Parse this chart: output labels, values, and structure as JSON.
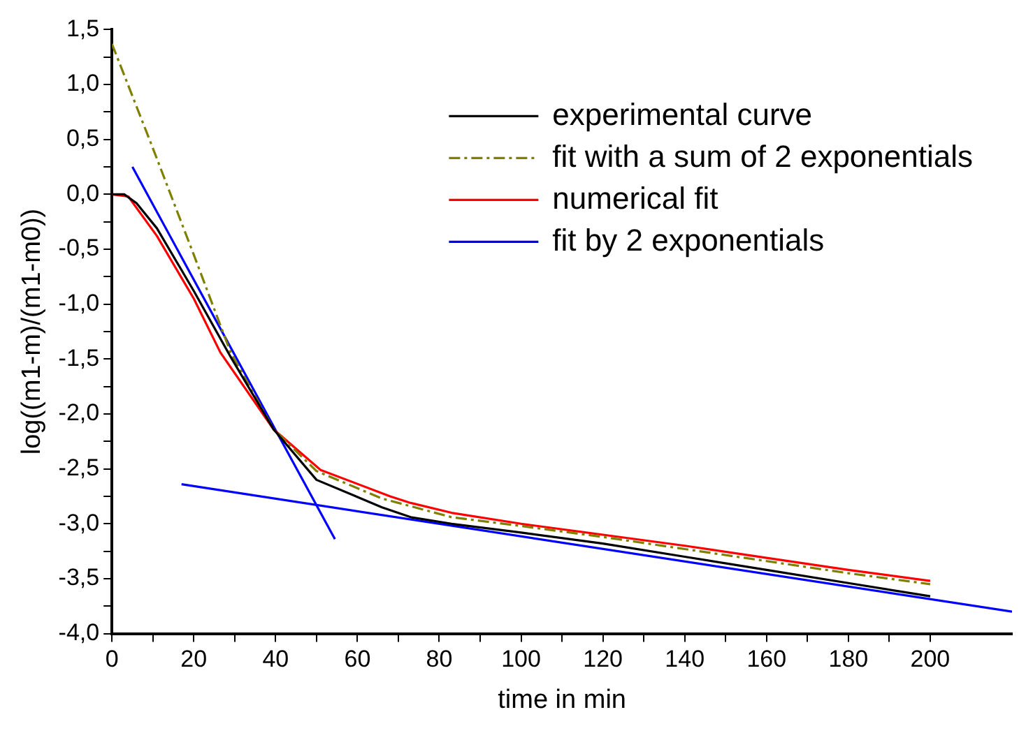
{
  "chart_data": {
    "type": "line",
    "xlabel": "time in min",
    "ylabel": "log((m1-m)/(m1-m0))",
    "xlim": [
      0,
      220
    ],
    "ylim": [
      -4,
      1.5
    ],
    "xticks": [
      0,
      {
        "value": 10,
        "label": null
      },
      20,
      {
        "value": 30,
        "label": null
      },
      40,
      {
        "value": 50,
        "label": null
      },
      60,
      {
        "value": 70,
        "label": null
      },
      80,
      {
        "value": 90,
        "label": null
      },
      100,
      {
        "value": 110,
        "label": null
      },
      120,
      {
        "value": 130,
        "label": null
      },
      140,
      {
        "value": 150,
        "label": null
      },
      160,
      {
        "value": 170,
        "label": null
      },
      180,
      {
        "value": 190,
        "label": null
      },
      200
    ],
    "yticks": [
      {
        "value": -4,
        "label": "-4,0"
      },
      {
        "value": -3.75,
        "label": null
      },
      {
        "value": -3.5,
        "label": "-3,5"
      },
      {
        "value": -3.25,
        "label": null
      },
      {
        "value": -3,
        "label": "-3,0"
      },
      {
        "value": -2.75,
        "label": null
      },
      {
        "value": -2.5,
        "label": "-2,5"
      },
      {
        "value": -2.25,
        "label": null
      },
      {
        "value": -2,
        "label": "-2,0"
      },
      {
        "value": -1.75,
        "label": null
      },
      {
        "value": -1.5,
        "label": "-1,5"
      },
      {
        "value": -1.25,
        "label": null
      },
      {
        "value": -1,
        "label": "-1,0"
      },
      {
        "value": -0.75,
        "label": null
      },
      {
        "value": -0.5,
        "label": "-0,5"
      },
      {
        "value": -0.25,
        "label": null
      },
      {
        "value": 0,
        "label": "0,0"
      },
      {
        "value": 0.25,
        "label": null
      },
      {
        "value": 0.5,
        "label": "0,5"
      },
      {
        "value": 0.75,
        "label": null
      },
      {
        "value": 1,
        "label": "1,0"
      },
      {
        "value": 1.25,
        "label": null
      },
      {
        "value": 1.5,
        "label": "1,5"
      }
    ],
    "grid": false,
    "legend": "top right",
    "marker": "none",
    "series": [
      {
        "name": "experimental curve",
        "color": "#000000",
        "line_style": "solid",
        "x": [
          0,
          3,
          6,
          11,
          20,
          29,
          39.5,
          50,
          66,
          73,
          83,
          100,
          120,
          140,
          160,
          180,
          200
        ],
        "values": [
          0,
          0,
          -0.08,
          -0.31,
          -0.88,
          -1.48,
          -2.14,
          -2.6,
          -2.85,
          -2.94,
          -3.0,
          -3.08,
          -3.18,
          -3.3,
          -3.42,
          -3.54,
          -3.66
        ]
      },
      {
        "name": "fit with a sum of 2 exponentials",
        "color": "#808000",
        "line_style": "dashed",
        "x": [
          0,
          10,
          20,
          29,
          39.5,
          50,
          66,
          83,
          100,
          120,
          140,
          160,
          180,
          200
        ],
        "values": [
          1.37,
          0.42,
          -0.55,
          -1.44,
          -2.14,
          -2.52,
          -2.77,
          -2.94,
          -3.02,
          -3.12,
          -3.23,
          -3.34,
          -3.45,
          -3.55
        ]
      },
      {
        "name": "numerical fit",
        "color": "#ff0000",
        "line_style": "solid",
        "x": [
          0,
          4,
          11,
          20,
          26.5,
          39.5,
          51,
          68,
          73,
          83,
          100,
          120,
          140,
          160,
          180,
          200
        ],
        "values": [
          0,
          -0.02,
          -0.38,
          -0.95,
          -1.44,
          -2.14,
          -2.51,
          -2.75,
          -2.81,
          -2.9,
          -3.0,
          -3.1,
          -3.2,
          -3.31,
          -3.42,
          -3.52
        ]
      },
      {
        "name": "fit by 2 exponentials",
        "color": "#0000ff",
        "line_style": "solid",
        "x": [
          5,
          54.5
        ],
        "values": [
          0.25,
          -3.14
        ]
      },
      {
        "color": "#0000ff",
        "line_style": "solid",
        "x": [
          17,
          220
        ],
        "values": [
          -2.64,
          -3.8
        ]
      }
    ]
  }
}
